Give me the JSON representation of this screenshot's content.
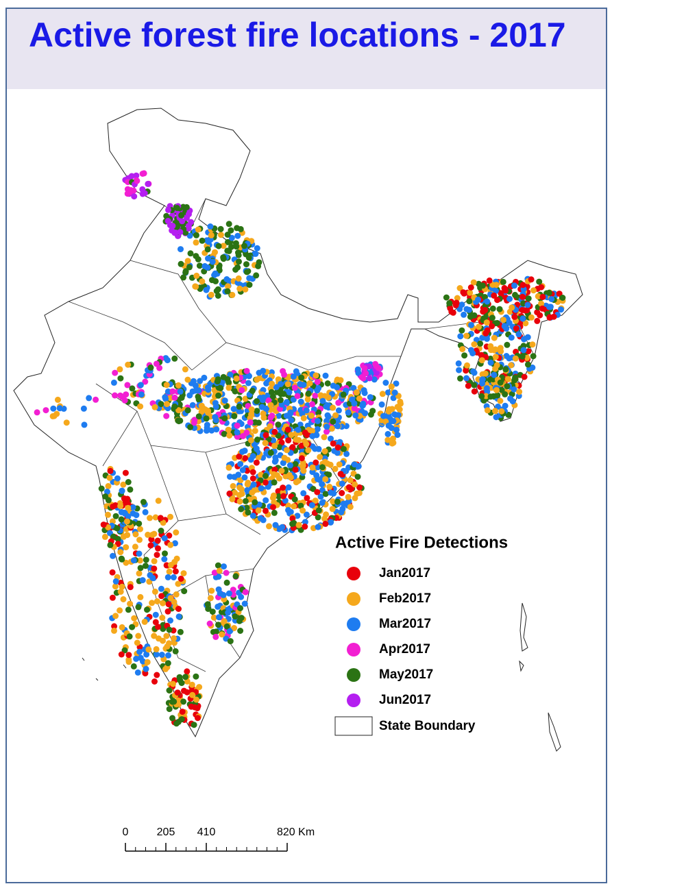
{
  "header": {
    "title": "Active forest fire locations - 2017"
  },
  "legend": {
    "title": "Active Fire Detections",
    "items": [
      {
        "label": "Jan2017",
        "color": "#e8000b"
      },
      {
        "label": "Feb2017",
        "color": "#f5a81c"
      },
      {
        "label": "Mar2017",
        "color": "#1e7cf0"
      },
      {
        "label": "Apr2017",
        "color": "#f21fd2"
      },
      {
        "label": "May2017",
        "color": "#2b7314"
      },
      {
        "label": "Jun2017",
        "color": "#b41ff0"
      }
    ],
    "boundary": "State Boundary"
  },
  "scale_bar": {
    "ticks": [
      0,
      205,
      410,
      {
        "value": 820,
        "label": "820 Km"
      }
    ]
  }
}
